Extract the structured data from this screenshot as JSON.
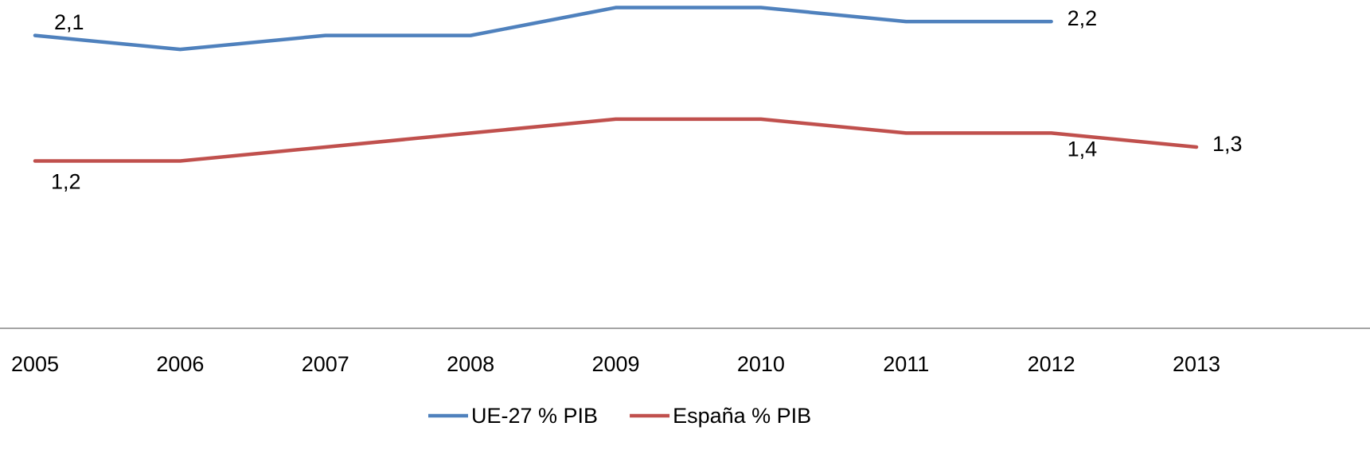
{
  "chart_data": {
    "type": "line",
    "categories": [
      "2005",
      "2006",
      "2007",
      "2008",
      "2009",
      "2010",
      "2011",
      "2012",
      "2013"
    ],
    "series": [
      {
        "name": "UE-27 % PIB",
        "color": "#4f81bd",
        "values": [
          2.1,
          2.0,
          2.1,
          2.1,
          2.3,
          2.3,
          2.2,
          2.2,
          null
        ],
        "value_labels": [
          "2,1",
          null,
          null,
          null,
          null,
          null,
          null,
          "2,2",
          null
        ]
      },
      {
        "name": "España % PIB",
        "color": "#c0504d",
        "values": [
          1.2,
          1.2,
          1.3,
          1.4,
          1.5,
          1.5,
          1.4,
          1.4,
          1.3
        ],
        "value_labels": [
          "1,2",
          null,
          null,
          null,
          null,
          null,
          null,
          "1,4",
          "1,3"
        ]
      }
    ],
    "ylim": [
      0,
      2.4
    ],
    "grid": false,
    "legend": "bottom"
  }
}
